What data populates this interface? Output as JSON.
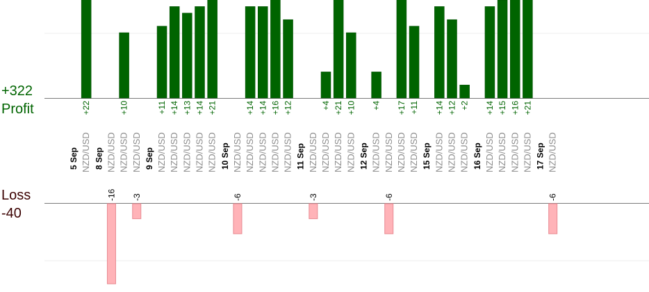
{
  "summary": {
    "profit_total": "+322",
    "profit_label": "Profit",
    "loss_label": "Loss",
    "loss_total": "-40"
  },
  "colors": {
    "profit_bar": "#006400",
    "profit_bar_dark": "#004d00",
    "profit_text": "#006400",
    "loss_bar": "#ffb3b8",
    "loss_bar_edge": "#e88a92",
    "loss_summary_text": "#3a0000",
    "date_text": "#000000",
    "symbol_text": "#8c8c8c",
    "gridline": "#ececec",
    "baseline": "#7a7a7a"
  },
  "chart_data": {
    "type": "bar",
    "title": "",
    "xlabel": "",
    "ylabel": "",
    "profit_ylim": [
      0,
      24
    ],
    "loss_ylim": [
      -16,
      0
    ],
    "grid": true,
    "legend": "none",
    "columns": [
      {
        "date": "5 Sep"
      },
      {
        "symbol": "NZD/USD",
        "value": 22
      },
      {
        "date": "8 Sep"
      },
      {
        "symbol": "NZD/USD",
        "value": -16
      },
      {
        "symbol": "NZD/USD",
        "value": 10
      },
      {
        "symbol": "NZD/USD",
        "value": -3
      },
      {
        "date": "9 Sep"
      },
      {
        "symbol": "NZD/USD",
        "value": 11
      },
      {
        "symbol": "NZD/USD",
        "value": 14
      },
      {
        "symbol": "NZD/USD",
        "value": 13
      },
      {
        "symbol": "NZD/USD",
        "value": 14
      },
      {
        "symbol": "NZD/USD",
        "value": 21
      },
      {
        "date": "10 Sep"
      },
      {
        "symbol": "NZD/USD",
        "value": -6
      },
      {
        "symbol": "NZD/USD",
        "value": 14
      },
      {
        "symbol": "NZD/USD",
        "value": 14
      },
      {
        "symbol": "NZD/USD",
        "value": 16
      },
      {
        "symbol": "NZD/USD",
        "value": 12
      },
      {
        "date": "11 Sep"
      },
      {
        "symbol": "NZD/USD",
        "value": -3
      },
      {
        "symbol": "NZD/USD",
        "value": 4
      },
      {
        "symbol": "NZD/USD",
        "value": 21
      },
      {
        "symbol": "NZD/USD",
        "value": 10
      },
      {
        "date": "12 Sep"
      },
      {
        "symbol": "NZD/USD",
        "value": 4
      },
      {
        "symbol": "NZD/USD",
        "value": -6
      },
      {
        "symbol": "NZD/USD",
        "value": 17
      },
      {
        "symbol": "NZD/USD",
        "value": 11
      },
      {
        "date": "15 Sep"
      },
      {
        "symbol": "NZD/USD",
        "value": 14
      },
      {
        "symbol": "NZD/USD",
        "value": 12
      },
      {
        "symbol": "NZD/USD",
        "value": 2
      },
      {
        "date": "16 Sep"
      },
      {
        "symbol": "NZD/USD",
        "value": 14
      },
      {
        "symbol": "NZD/USD",
        "value": 15
      },
      {
        "symbol": "NZD/USD",
        "value": 16
      },
      {
        "symbol": "NZD/USD",
        "value": 21
      },
      {
        "date": "17 Sep"
      },
      {
        "symbol": "NZD/USD",
        "value": -6
      }
    ]
  }
}
